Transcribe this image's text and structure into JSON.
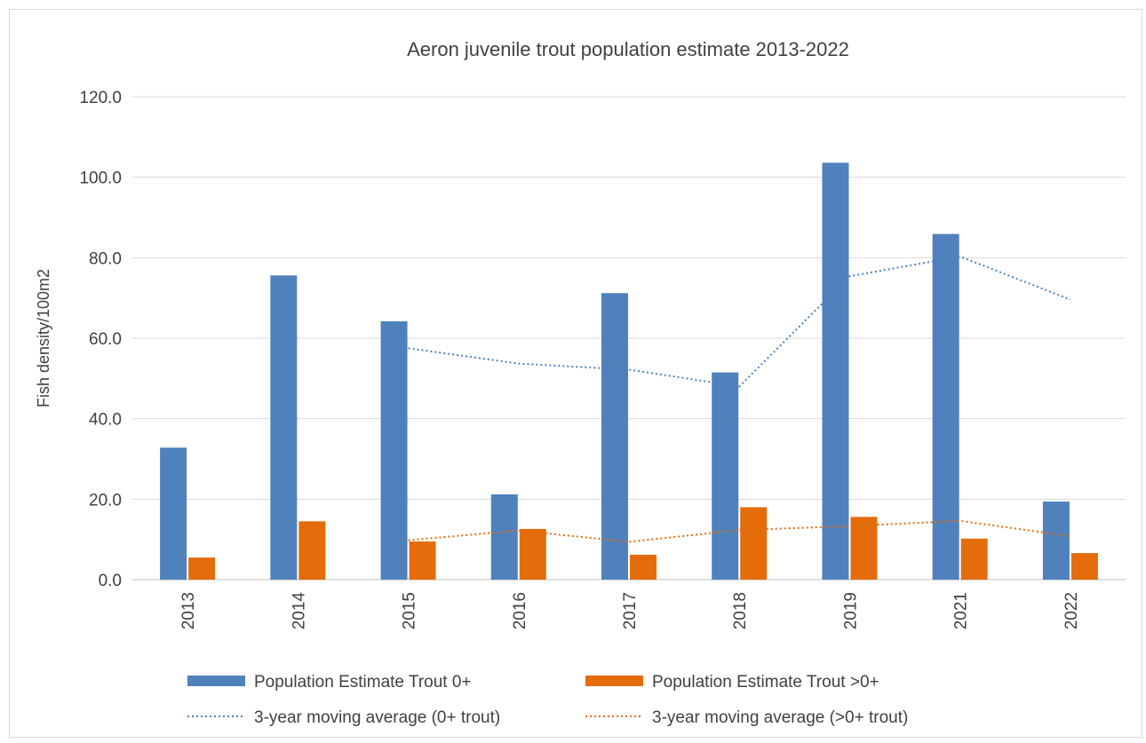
{
  "chart_data": {
    "type": "bar",
    "title": "Aeron juvenile trout population estimate 2013-2022",
    "xlabel": "",
    "ylabel": "Fish density/100m2",
    "ylim": [
      0,
      120
    ],
    "yticks": [
      "0.0",
      "20.0",
      "40.0",
      "60.0",
      "80.0",
      "100.0",
      "120.0"
    ],
    "categories": [
      "2013",
      "2014",
      "2015",
      "2016",
      "2017",
      "2018",
      "2019",
      "2021",
      "2022"
    ],
    "series": [
      {
        "name": "Population Estimate Trout 0+",
        "kind": "bar",
        "color": "#4f81bd",
        "values": [
          32.8,
          75.6,
          64.2,
          21.2,
          71.2,
          51.5,
          103.6,
          85.9,
          19.4
        ]
      },
      {
        "name": "Population Estimate Trout >0+",
        "kind": "bar",
        "color": "#e46c0a",
        "values": [
          5.5,
          14.5,
          9.5,
          12.6,
          6.2,
          18.0,
          15.6,
          10.2,
          6.6
        ]
      },
      {
        "name": "3-year moving average (0+ trout)",
        "kind": "line",
        "style": "dotted",
        "color": "#4f81bd",
        "values": [
          null,
          null,
          57.5,
          53.7,
          52.2,
          48.0,
          75.4,
          80.3,
          69.6
        ]
      },
      {
        "name": "3-year moving average (>0+ trout)",
        "kind": "line",
        "style": "dotted",
        "color": "#e46c0a",
        "values": [
          null,
          null,
          9.8,
          12.2,
          9.4,
          12.3,
          13.3,
          14.6,
          10.8
        ]
      }
    ],
    "grid": true,
    "legend_position": "bottom"
  }
}
